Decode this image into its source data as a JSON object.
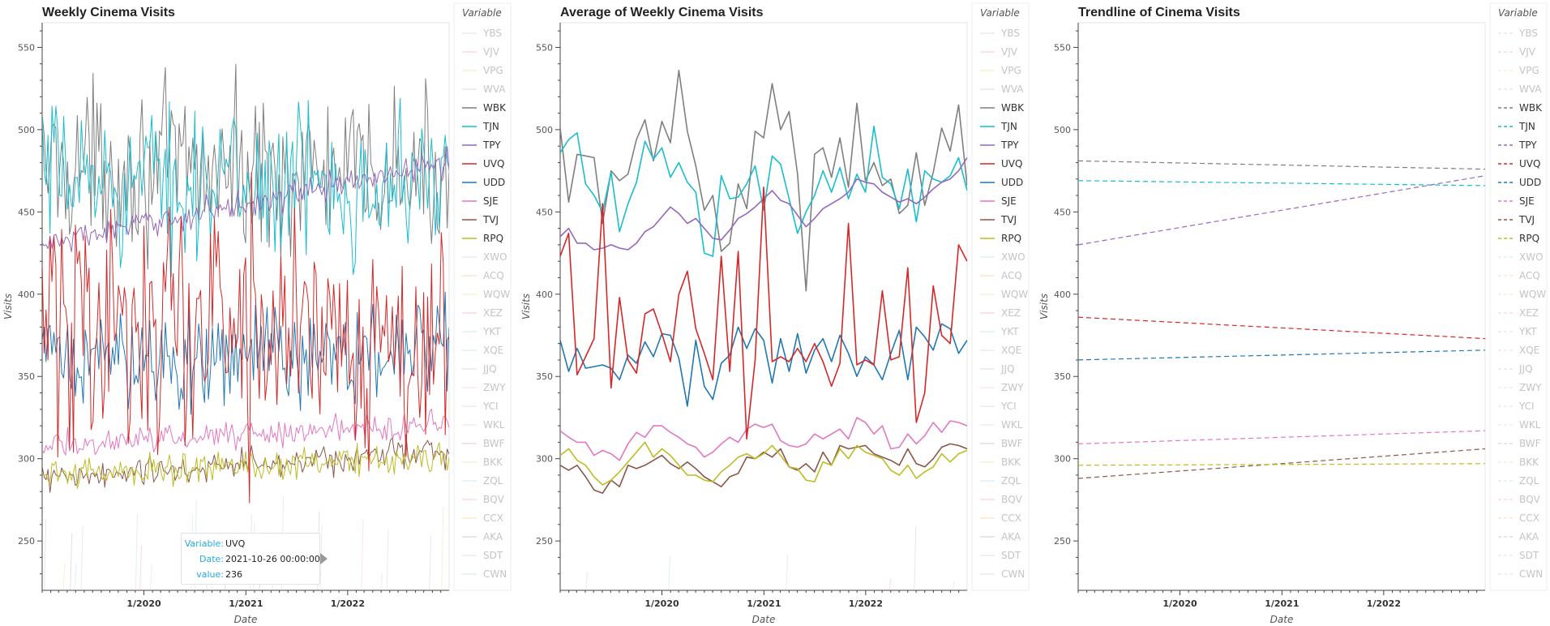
{
  "colors": {
    "YBS": "#aec7e8",
    "VJV": "#ff9896",
    "VPG": "#dbdb8d",
    "WVA": "#c5b0d5",
    "WBK": "#7f7f7f",
    "TJN": "#17becf",
    "TPY": "#9467bd",
    "UVQ": "#d62728",
    "UDD": "#1f77b4",
    "SJE": "#e377c2",
    "TVJ": "#8c564b",
    "RPQ": "#bcbd22",
    "XWO": "#9edae5",
    "ACQ": "#ffbb78",
    "WQW": "#dbdb8d",
    "XEZ": "#ff9896",
    "YKT": "#9edae5",
    "XQE": "#9edae5",
    "JJQ": "#c5b0d5",
    "ZWY": "#f7b6d2",
    "YCI": "#c7c7c7",
    "WKL": "#f7b6d2",
    "BWF": "#c49c94",
    "BKK": "#dbdb8d",
    "ZQL": "#9edae5",
    "BQV": "#ff9896",
    "CCX": "#ffbb78",
    "AKA": "#c49c94",
    "SDT": "#c7c7c7",
    "CWN": "#9edae5"
  },
  "legend": {
    "title": "Variable",
    "items": [
      "YBS",
      "VJV",
      "VPG",
      "WVA",
      "WBK",
      "TJN",
      "TPY",
      "UVQ",
      "UDD",
      "SJE",
      "TVJ",
      "RPQ",
      "XWO",
      "ACQ",
      "WQW",
      "XEZ",
      "YKT",
      "XQE",
      "JJQ",
      "ZWY",
      "YCI",
      "WKL",
      "BWF",
      "BKK",
      "ZQL",
      "BQV",
      "CCX",
      "AKA",
      "SDT",
      "CWN"
    ],
    "active": [
      "WBK",
      "TJN",
      "TPY",
      "UVQ",
      "UDD",
      "SJE",
      "TVJ",
      "RPQ"
    ]
  },
  "tooltip": {
    "variable_label": "Variable:",
    "variable_value": "UVQ",
    "date_label": "Date:",
    "date_value": "2021-10-26 00:00:00",
    "value_label": "value:",
    "value_value": "236"
  },
  "chart_data": [
    {
      "type": "line",
      "title": "Weekly Cinema Visits",
      "xlabel": "Date",
      "ylabel": "Visits",
      "xlim": [
        "2019-01-01",
        "2022-12-31"
      ],
      "ylim": [
        220,
        565
      ],
      "yticks": [
        250,
        300,
        350,
        400,
        450,
        500,
        550
      ],
      "xticks": [
        "1/2020",
        "1/2021",
        "1/2022"
      ],
      "frequency": "weekly",
      "series": [
        {
          "name": "WBK",
          "mean": 480,
          "amp": 70,
          "trend": [
            480,
            470
          ]
        },
        {
          "name": "TJN",
          "mean": 470,
          "amp": 65,
          "trend": [
            470,
            467
          ]
        },
        {
          "name": "TPY",
          "mean": 440,
          "amp": 12,
          "trend": [
            430,
            480
          ]
        },
        {
          "name": "UVQ",
          "mean": 380,
          "amp": 120,
          "trend": [
            386,
            373
          ]
        },
        {
          "name": "UDD",
          "mean": 365,
          "amp": 45,
          "trend": [
            360,
            365
          ]
        },
        {
          "name": "SJE",
          "mean": 313,
          "amp": 12,
          "trend": [
            308,
            322
          ]
        },
        {
          "name": "TVJ",
          "mean": 296,
          "amp": 14,
          "trend": [
            287,
            305
          ]
        },
        {
          "name": "RPQ",
          "mean": 296,
          "amp": 14,
          "trend": [
            290,
            302
          ]
        }
      ]
    },
    {
      "type": "line",
      "title": "Average of Weekly Cinema Visits",
      "xlabel": "Date",
      "ylabel": "Visits",
      "xlim": [
        "2019-01-01",
        "2022-12-31"
      ],
      "ylim": [
        220,
        565
      ],
      "yticks": [
        250,
        300,
        350,
        400,
        450,
        500,
        550
      ],
      "xticks": [
        "1/2020",
        "1/2021",
        "1/2022"
      ],
      "frequency": "monthly",
      "series": [
        {
          "name": "WBK",
          "values": [
            501,
            456,
            485,
            484,
            483,
            443,
            475,
            469,
            473,
            494,
            506,
            481,
            505,
            492,
            536,
            499,
            478,
            451,
            460,
            426,
            431,
            467,
            452,
            499,
            495,
            528,
            500,
            511,
            473,
            402,
            485,
            489,
            471,
            495,
            465,
            516,
            469,
            480,
            466,
            470,
            449,
            454,
            486,
            454,
            474,
            501,
            487,
            515,
            466
          ]
        },
        {
          "name": "TJN",
          "values": [
            486,
            494,
            498,
            467,
            460,
            450,
            474,
            438,
            455,
            468,
            493,
            482,
            489,
            471,
            480,
            468,
            462,
            425,
            423,
            472,
            458,
            459,
            467,
            478,
            451,
            484,
            479,
            458,
            437,
            450,
            460,
            475,
            462,
            477,
            458,
            473,
            462,
            502,
            471,
            467,
            452,
            476,
            444,
            475,
            470,
            468,
            472,
            483,
            463
          ]
        },
        {
          "name": "TPY",
          "values": [
            435,
            440,
            431,
            431,
            427,
            428,
            430,
            428,
            427,
            431,
            438,
            441,
            447,
            453,
            449,
            443,
            446,
            440,
            434,
            433,
            439,
            446,
            449,
            453,
            458,
            463,
            457,
            455,
            448,
            441,
            446,
            452,
            455,
            458,
            462,
            470,
            468,
            467,
            462,
            459,
            456,
            458,
            455,
            459,
            464,
            468,
            470,
            475,
            483
          ]
        },
        {
          "name": "UVQ",
          "values": [
            423,
            437,
            351,
            362,
            373,
            455,
            343,
            398,
            360,
            352,
            388,
            391,
            376,
            359,
            400,
            414,
            379,
            364,
            348,
            423,
            353,
            426,
            312,
            360,
            465,
            359,
            362,
            359,
            367,
            359,
            370,
            359,
            344,
            358,
            443,
            357,
            360,
            357,
            402,
            360,
            362,
            416,
            322,
            340,
            405,
            375,
            370,
            430,
            420
          ]
        },
        {
          "name": "UDD",
          "values": [
            372,
            353,
            367,
            355,
            356,
            357,
            355,
            348,
            363,
            358,
            371,
            362,
            376,
            375,
            361,
            332,
            372,
            344,
            336,
            358,
            363,
            380,
            367,
            379,
            372,
            346,
            373,
            353,
            376,
            352,
            366,
            373,
            359,
            375,
            364,
            350,
            362,
            357,
            348,
            364,
            378,
            348,
            380,
            374,
            366,
            382,
            379,
            364,
            372
          ]
        },
        {
          "name": "SJE",
          "values": [
            317,
            313,
            310,
            310,
            302,
            305,
            303,
            299,
            309,
            316,
            313,
            320,
            320,
            316,
            313,
            309,
            307,
            301,
            304,
            309,
            313,
            310,
            318,
            321,
            319,
            321,
            311,
            308,
            307,
            309,
            315,
            312,
            315,
            318,
            312,
            325,
            322,
            315,
            320,
            306,
            307,
            315,
            309,
            314,
            322,
            316,
            323,
            322,
            320
          ]
        },
        {
          "name": "TVJ",
          "values": [
            296,
            293,
            296,
            289,
            281,
            279,
            287,
            283,
            296,
            294,
            296,
            299,
            302,
            297,
            294,
            298,
            294,
            289,
            286,
            283,
            289,
            291,
            301,
            300,
            304,
            301,
            306,
            295,
            293,
            297,
            292,
            304,
            296,
            308,
            306,
            307,
            308,
            303,
            301,
            299,
            296,
            306,
            297,
            295,
            300,
            307,
            309,
            308,
            306
          ]
        },
        {
          "name": "RPQ",
          "values": [
            302,
            306,
            299,
            296,
            289,
            284,
            287,
            292,
            298,
            304,
            310,
            301,
            306,
            302,
            296,
            290,
            290,
            287,
            286,
            292,
            296,
            301,
            303,
            300,
            303,
            308,
            302,
            295,
            294,
            287,
            286,
            298,
            296,
            306,
            300,
            308,
            304,
            302,
            300,
            293,
            290,
            296,
            288,
            292,
            295,
            303,
            298,
            303,
            305
          ]
        }
      ]
    },
    {
      "type": "line",
      "title": "Trendline of Cinema Visits",
      "xlabel": "Date",
      "ylabel": "Visits",
      "xlim": [
        "2019-01-01",
        "2022-12-31"
      ],
      "ylim": [
        220,
        565
      ],
      "yticks": [
        250,
        300,
        350,
        400,
        450,
        500,
        550
      ],
      "xticks": [
        "1/2020",
        "1/2021",
        "1/2022"
      ],
      "line_style": "dashed",
      "series": [
        {
          "name": "WBK",
          "values": [
            481,
            476
          ]
        },
        {
          "name": "TJN",
          "values": [
            469,
            466
          ]
        },
        {
          "name": "TPY",
          "values": [
            430,
            472
          ]
        },
        {
          "name": "UVQ",
          "values": [
            386,
            373
          ]
        },
        {
          "name": "UDD",
          "values": [
            360,
            366
          ]
        },
        {
          "name": "SJE",
          "values": [
            309,
            317
          ]
        },
        {
          "name": "TVJ",
          "values": [
            288,
            306
          ]
        },
        {
          "name": "RPQ",
          "values": [
            296,
            297
          ]
        }
      ]
    }
  ]
}
